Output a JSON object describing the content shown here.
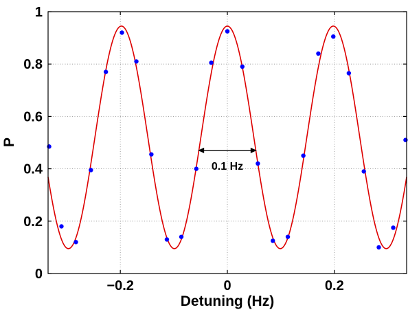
{
  "chart_data": {
    "type": "scatter",
    "xlabel": "Detuning (Hz)",
    "ylabel": "P",
    "xlim": [
      -0.335,
      0.335
    ],
    "ylim": [
      0,
      1
    ],
    "xticks": [
      -0.2,
      0,
      0.2
    ],
    "xtick_labels": [
      "−0.2",
      "0",
      "0.2"
    ],
    "yticks": [
      0,
      0.2,
      0.4,
      0.6,
      0.8,
      1
    ],
    "ytick_labels": [
      "0",
      "0.2",
      "0.4",
      "0.6",
      "0.8",
      "1"
    ],
    "grid": true,
    "colors": {
      "data_points": "#0000ff",
      "fit_curve": "#dd0000"
    },
    "series": [
      {
        "kind": "points",
        "x": [
          -0.333,
          -0.31,
          -0.283,
          -0.255,
          -0.227,
          -0.197,
          -0.17,
          -0.142,
          -0.113,
          -0.086,
          -0.058,
          -0.03,
          0.0,
          0.028,
          0.057,
          0.085,
          0.113,
          0.142,
          0.17,
          0.198,
          0.227,
          0.255,
          0.283,
          0.31,
          0.333
        ],
        "y": [
          0.485,
          0.18,
          0.12,
          0.395,
          0.77,
          0.92,
          0.81,
          0.455,
          0.13,
          0.14,
          0.4,
          0.805,
          0.925,
          0.79,
          0.42,
          0.125,
          0.14,
          0.45,
          0.84,
          0.905,
          0.765,
          0.39,
          0.1,
          0.175,
          0.51
        ]
      },
      {
        "kind": "fit",
        "model": "cosine",
        "center": 0.52,
        "amplitude": 0.425,
        "period": 0.198
      }
    ],
    "annotation": {
      "label": "0.1 Hz",
      "x_start": -0.055,
      "x_end": 0.055,
      "y": 0.47
    }
  }
}
